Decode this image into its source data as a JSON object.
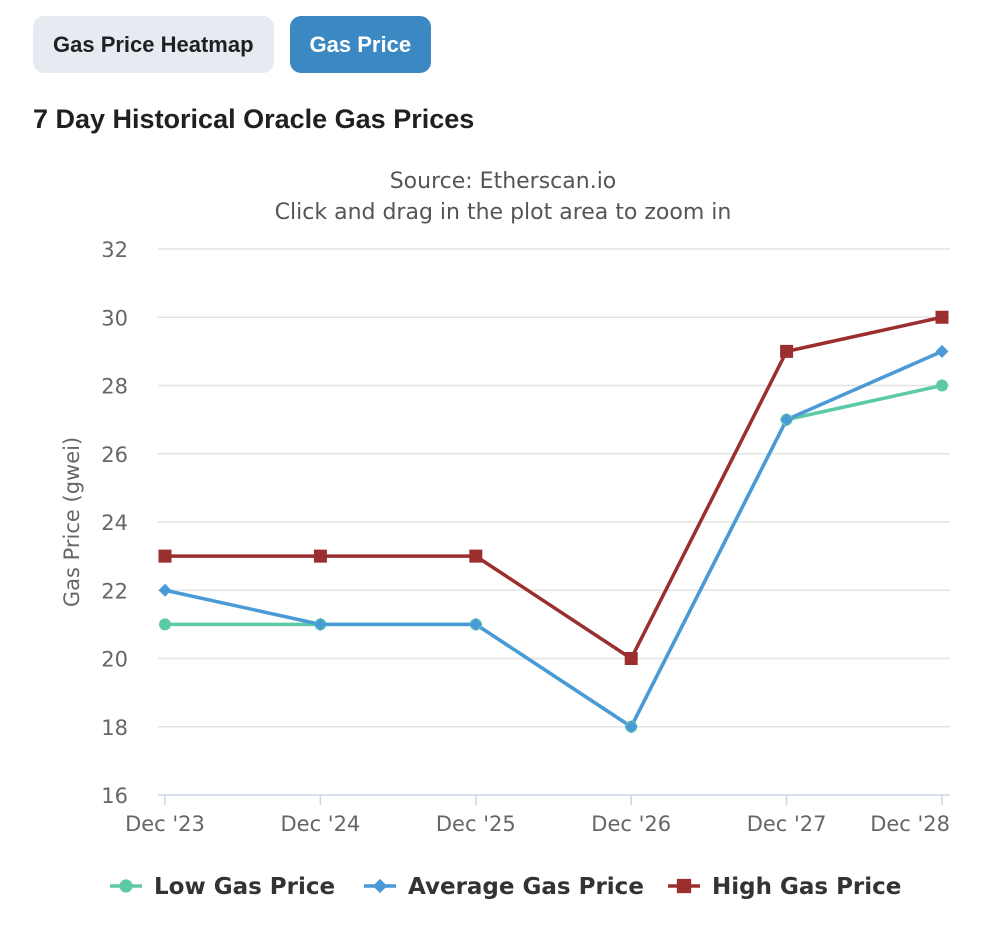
{
  "tabs": [
    {
      "label": "Gas Price Heatmap",
      "active": false
    },
    {
      "label": "Gas Price",
      "active": true
    }
  ],
  "card_title": "7 Day Historical Oracle Gas Prices",
  "chart_data": {
    "type": "line",
    "subtitle_lines": [
      "Source: Etherscan.io",
      "Click and drag in the plot area to zoom in"
    ],
    "ylabel": "Gas Price (gwei)",
    "categories": [
      "Dec '23",
      "Dec '24",
      "Dec '25",
      "Dec '26",
      "Dec '27",
      "Dec '28"
    ],
    "ylim": [
      16,
      32
    ],
    "yticks": [
      16,
      18,
      20,
      22,
      24,
      26,
      28,
      30,
      32
    ],
    "grid": true,
    "legend_position": "bottom",
    "series": [
      {
        "name": "Low Gas Price",
        "color": "#5cc9a7",
        "marker": "circle",
        "values": [
          21,
          21,
          21,
          18,
          27,
          28
        ]
      },
      {
        "name": "Average Gas Price",
        "color": "#4a9ad8",
        "marker": "diamond",
        "values": [
          22,
          21,
          21,
          18,
          27,
          29
        ]
      },
      {
        "name": "High Gas Price",
        "color": "#9b2f2f",
        "marker": "square",
        "values": [
          23,
          23,
          23,
          20,
          29,
          30
        ]
      }
    ]
  }
}
